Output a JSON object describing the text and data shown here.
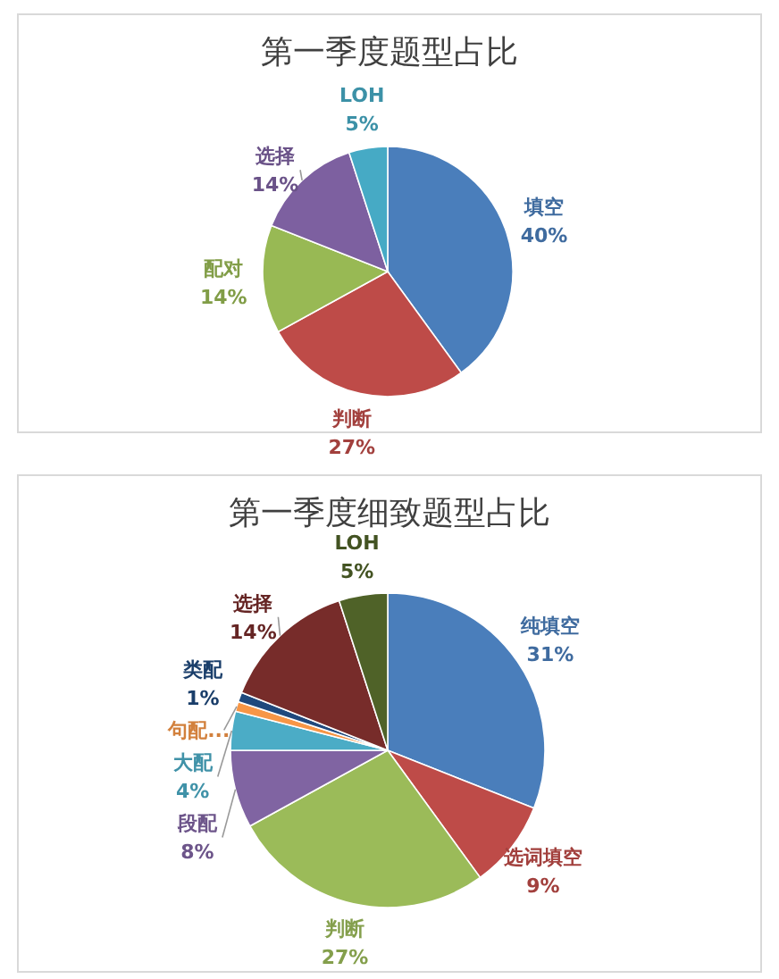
{
  "chart_data": [
    {
      "type": "pie",
      "title": "第一季度题型占比",
      "categories": [
        "填空",
        "判断",
        "配对",
        "选择",
        "LOH"
      ],
      "values": [
        40,
        27,
        14,
        14,
        5
      ],
      "value_labels": [
        "40%",
        "27%",
        "14%",
        "14%",
        "5%"
      ],
      "colors": [
        "#4a7ebb",
        "#be4b48",
        "#98b954",
        "#7d60a0",
        "#46aac5"
      ]
    },
    {
      "type": "pie",
      "title": "第一季度细致题型占比",
      "categories": [
        "纯填空",
        "选词填空",
        "判断",
        "段配",
        "大配",
        "句配...",
        "类配",
        "选择",
        "LOH"
      ],
      "values": [
        31,
        9,
        27,
        8,
        4,
        1,
        1,
        14,
        5
      ],
      "value_labels": [
        "31%",
        "9%",
        "27%",
        "8%",
        "4%",
        null,
        "1%",
        "14%",
        "5%"
      ],
      "colors": [
        "#4a7ebb",
        "#be4b48",
        "#9bbb59",
        "#8064a2",
        "#4bacc6",
        "#f79646",
        "#1f497d",
        "#772c2a",
        "#4f6228"
      ]
    }
  ]
}
